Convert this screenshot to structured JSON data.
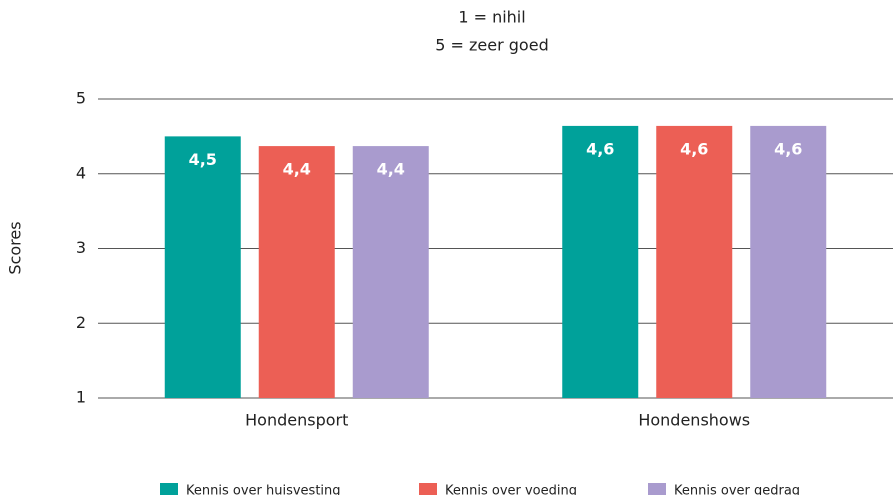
{
  "chart_data": {
    "type": "bar",
    "title": "1 = nihil",
    "subtitle": "5 = zeer goed",
    "y_label": "Scores",
    "categories": [
      "Hondensport",
      "Hondenshows"
    ],
    "series": [
      {
        "name": "Kennis over huisvesting",
        "color": "#00a19a",
        "values": [
          4.5,
          4.64
        ],
        "value_labels": [
          "4,5",
          "4,6"
        ]
      },
      {
        "name": "Kennis over voeding",
        "color": "#ec5f55",
        "values": [
          4.37,
          4.64
        ],
        "value_labels": [
          "4,4",
          "4,6"
        ]
      },
      {
        "name": "Kennis over gedrag",
        "color": "#a99bce",
        "values": [
          4.37,
          4.64
        ],
        "value_labels": [
          "4,4",
          "4,6"
        ]
      }
    ],
    "ylim": [
      1,
      5
    ],
    "yticks": [
      1,
      2,
      3,
      4,
      5
    ],
    "grid": true,
    "legend": "bottom"
  }
}
